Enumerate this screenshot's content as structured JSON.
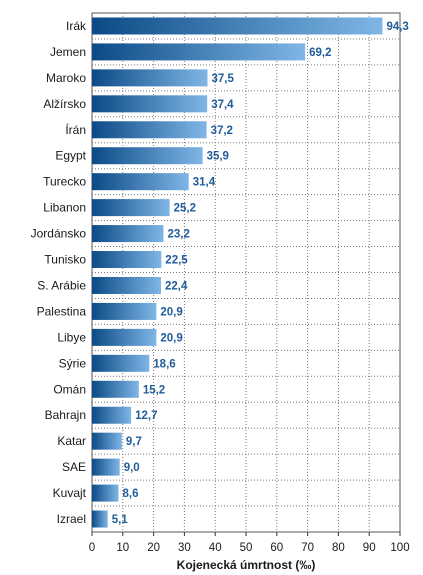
{
  "chart_data": {
    "type": "bar",
    "orientation": "horizontal",
    "categories": [
      "Irák",
      "Jemen",
      "Maroko",
      "Alžírsko",
      "Írán",
      "Egypt",
      "Turecko",
      "Libanon",
      "Jordánsko",
      "Tunisko",
      "S. Arábie",
      "Palestina",
      "Libye",
      "Sýrie",
      "Omán",
      "Bahrajn",
      "Katar",
      "SAE",
      "Kuvajt",
      "Izrael"
    ],
    "values": [
      94.3,
      69.2,
      37.5,
      37.4,
      37.2,
      35.9,
      31.4,
      25.2,
      23.2,
      22.5,
      22.4,
      20.9,
      20.9,
      18.6,
      15.2,
      12.7,
      9.7,
      9.0,
      8.6,
      5.1
    ],
    "value_labels": [
      "94,3",
      "69,2",
      "37,5",
      "37,4",
      "37,2",
      "35,9",
      "31,4",
      "25,2",
      "23,2",
      "22,5",
      "22,4",
      "20,9",
      "20,9",
      "18,6",
      "15,2",
      "12,7",
      "9,7",
      "9,0",
      "8,6",
      "5,1"
    ],
    "xlabel": "Kojenecká úmrtnost (‰)",
    "xlim": [
      0,
      100
    ],
    "xticks": [
      "0",
      "10",
      "20",
      "30",
      "40",
      "50",
      "60",
      "70",
      "80",
      "90",
      "100"
    ],
    "grid": true,
    "colors": {
      "bar_dark": "#0b4a86",
      "bar_light": "#7fb6e6",
      "label": "#1f5c99",
      "grid": "#777777"
    }
  }
}
